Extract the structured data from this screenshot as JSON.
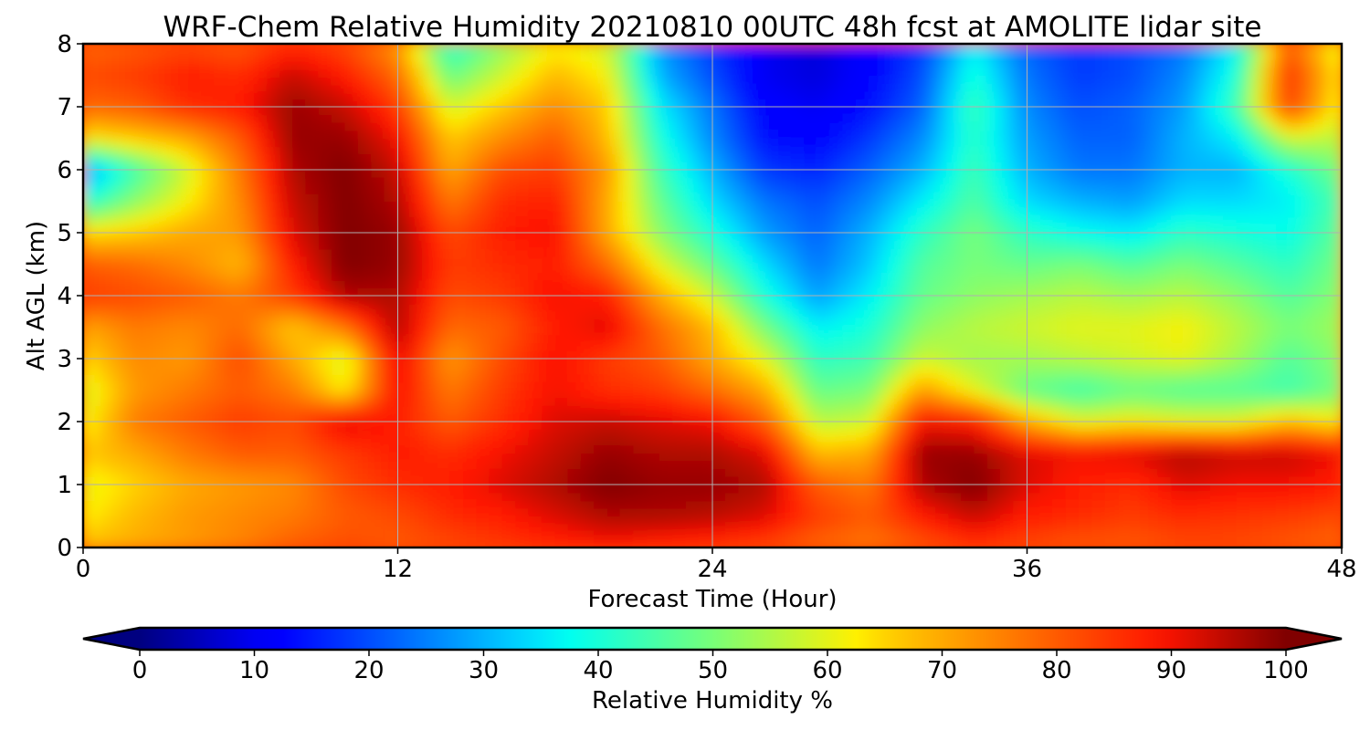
{
  "chart_data": {
    "type": "heatmap",
    "title": "WRF-Chem Relative Humidity 20210810 00UTC 48h fcst at AMOLITE lidar site",
    "xlabel": "Forecast Time (Hour)",
    "ylabel": "Alt AGL (km)",
    "xlim": [
      0,
      48
    ],
    "ylim": [
      0,
      8
    ],
    "xticks": [
      0,
      12,
      24,
      36,
      48
    ],
    "yticks": [
      0,
      1,
      2,
      3,
      4,
      5,
      6,
      7,
      8
    ],
    "grid": true,
    "colorbar": {
      "label": "Relative Humidity %",
      "min": 0,
      "max": 100,
      "ticks": [
        0,
        10,
        20,
        30,
        40,
        50,
        60,
        70,
        80,
        90,
        100
      ],
      "extend": "both",
      "colormap": "jet"
    },
    "x": [
      0,
      2,
      4,
      6,
      8,
      10,
      12,
      14,
      16,
      18,
      20,
      22,
      24,
      26,
      28,
      30,
      32,
      34,
      36,
      38,
      40,
      42,
      44,
      46,
      48
    ],
    "y": [
      0,
      0.5,
      1,
      1.5,
      2,
      2.5,
      3,
      3.5,
      4,
      4.5,
      5,
      5.5,
      6,
      6.5,
      7,
      7.5,
      8
    ],
    "z": [
      [
        68,
        70,
        72,
        75,
        80,
        82,
        80,
        82,
        84,
        86,
        88,
        86,
        84,
        82,
        78,
        76,
        80,
        84,
        82,
        80,
        80,
        82,
        82,
        80,
        78
      ],
      [
        62,
        68,
        72,
        74,
        76,
        80,
        82,
        86,
        88,
        92,
        96,
        96,
        95,
        92,
        84,
        80,
        88,
        94,
        88,
        86,
        84,
        86,
        85,
        84,
        82
      ],
      [
        60,
        65,
        70,
        72,
        74,
        82,
        86,
        88,
        92,
        96,
        100,
        98,
        98,
        96,
        80,
        76,
        96,
        100,
        92,
        88,
        86,
        92,
        90,
        90,
        88
      ],
      [
        66,
        70,
        76,
        80,
        80,
        84,
        88,
        86,
        90,
        94,
        98,
        96,
        96,
        92,
        68,
        70,
        98,
        98,
        92,
        90,
        92,
        96,
        94,
        94,
        90
      ],
      [
        60,
        76,
        80,
        84,
        82,
        92,
        88,
        80,
        86,
        92,
        94,
        92,
        90,
        80,
        56,
        58,
        90,
        88,
        70,
        60,
        62,
        60,
        60,
        68,
        62
      ],
      [
        58,
        72,
        76,
        80,
        76,
        62,
        90,
        76,
        84,
        90,
        86,
        84,
        78,
        70,
        48,
        50,
        72,
        60,
        48,
        44,
        48,
        46,
        46,
        44,
        50
      ],
      [
        64,
        74,
        72,
        82,
        70,
        58,
        92,
        72,
        82,
        90,
        84,
        80,
        70,
        60,
        42,
        44,
        58,
        54,
        54,
        56,
        58,
        60,
        54,
        46,
        52
      ],
      [
        70,
        76,
        74,
        78,
        66,
        76,
        96,
        78,
        80,
        88,
        92,
        78,
        68,
        50,
        36,
        40,
        52,
        56,
        58,
        60,
        60,
        62,
        56,
        50,
        54
      ],
      [
        84,
        82,
        80,
        76,
        84,
        96,
        96,
        82,
        84,
        90,
        88,
        70,
        58,
        40,
        28,
        36,
        48,
        52,
        54,
        56,
        54,
        56,
        52,
        46,
        52
      ],
      [
        80,
        78,
        74,
        68,
        88,
        100,
        98,
        84,
        86,
        88,
        78,
        60,
        48,
        34,
        24,
        32,
        46,
        50,
        48,
        50,
        46,
        50,
        46,
        42,
        50
      ],
      [
        64,
        66,
        70,
        72,
        92,
        100,
        98,
        82,
        88,
        90,
        70,
        52,
        40,
        28,
        22,
        30,
        42,
        50,
        42,
        38,
        36,
        42,
        40,
        38,
        48
      ],
      [
        40,
        52,
        62,
        74,
        94,
        100,
        96,
        76,
        86,
        88,
        70,
        48,
        34,
        24,
        20,
        26,
        36,
        46,
        34,
        30,
        28,
        34,
        34,
        36,
        46
      ],
      [
        26,
        44,
        58,
        76,
        96,
        100,
        94,
        70,
        82,
        84,
        72,
        44,
        30,
        18,
        16,
        22,
        30,
        44,
        30,
        24,
        24,
        30,
        30,
        40,
        50
      ],
      [
        62,
        66,
        70,
        80,
        98,
        98,
        90,
        66,
        74,
        80,
        68,
        40,
        26,
        14,
        12,
        18,
        26,
        42,
        28,
        22,
        22,
        30,
        36,
        58,
        56
      ],
      [
        78,
        80,
        86,
        88,
        98,
        94,
        84,
        58,
        66,
        74,
        66,
        36,
        24,
        12,
        10,
        14,
        22,
        44,
        26,
        20,
        22,
        28,
        44,
        84,
        60
      ],
      [
        82,
        84,
        88,
        86,
        94,
        88,
        78,
        48,
        58,
        68,
        62,
        30,
        20,
        10,
        8,
        12,
        20,
        40,
        24,
        18,
        20,
        26,
        40,
        86,
        62
      ],
      [
        78,
        80,
        82,
        80,
        86,
        82,
        72,
        40,
        52,
        62,
        58,
        28,
        18,
        10,
        8,
        12,
        18,
        36,
        22,
        18,
        20,
        24,
        36,
        80,
        58
      ]
    ]
  }
}
